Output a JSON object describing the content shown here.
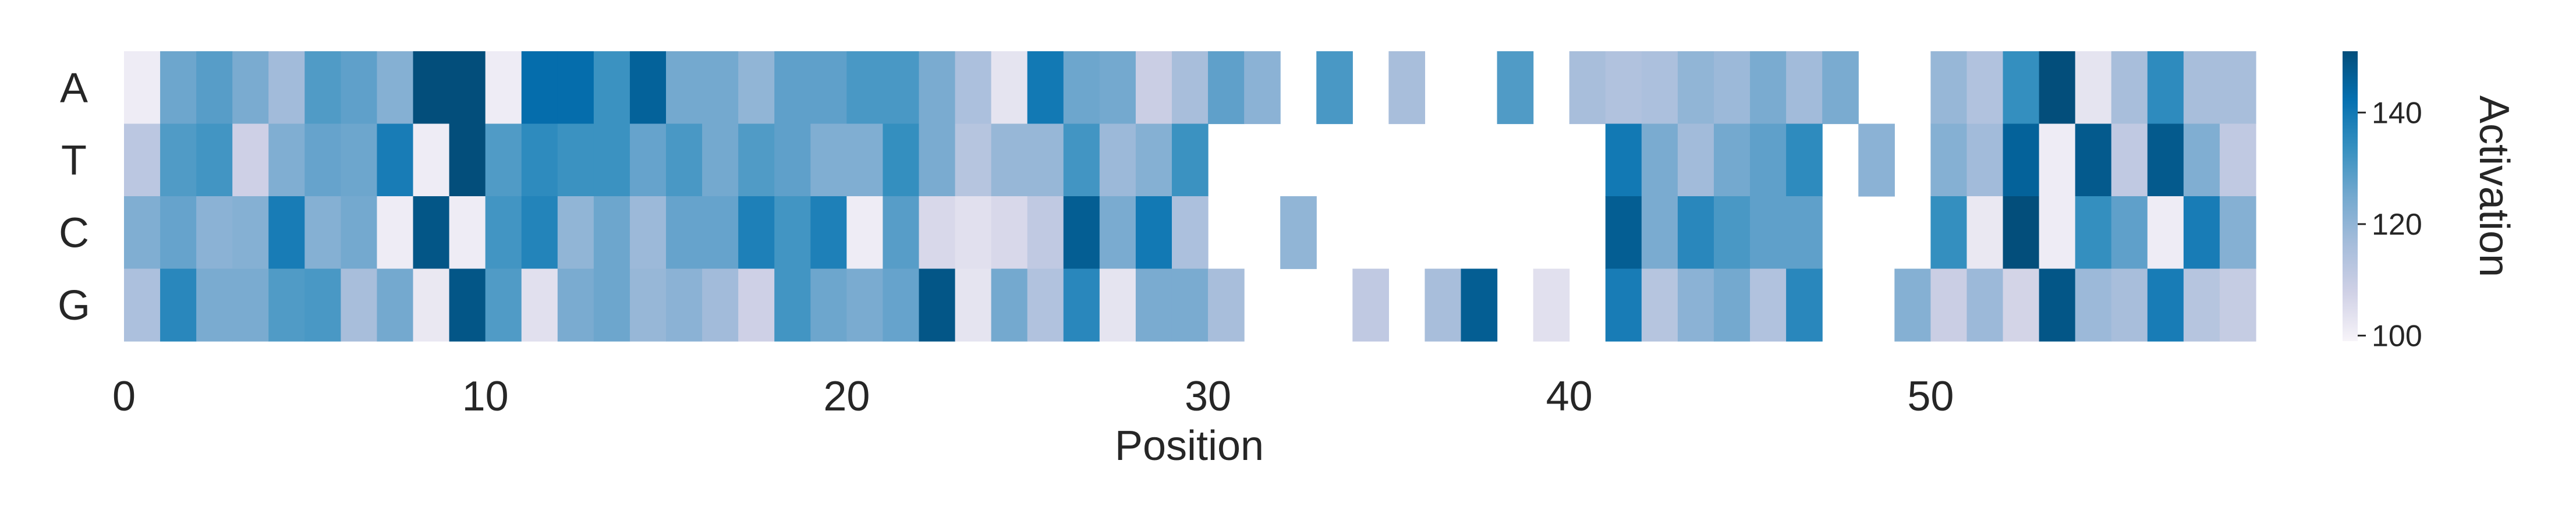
{
  "chart_data": {
    "type": "heatmap",
    "xlabel": "Position",
    "ylabel": "",
    "colorbar_label": "Activation",
    "colorbar_range": [
      99,
      151
    ],
    "colorbar_ticks": [
      100,
      120,
      140
    ],
    "x_ticks": [
      0,
      10,
      20,
      30,
      40,
      50
    ],
    "rows": [
      "A",
      "T",
      "C",
      "G"
    ],
    "n_positions": 59,
    "colormap": [
      "#f7f4f9",
      "#d0d1e6",
      "#a6bddb",
      "#74a9cf",
      "#3690c0",
      "#0570b0",
      "#034e7b"
    ],
    "values": [
      [
        101,
        126,
        129,
        124,
        117,
        130,
        128,
        122,
        151,
        151,
        101,
        143,
        143,
        133,
        146,
        125,
        125,
        120,
        128,
        128,
        131,
        131,
        124,
        115,
        103,
        140,
        126,
        125,
        109,
        116,
        128,
        121,
        null,
        131,
        null,
        116,
        null,
        null,
        130,
        null,
        116,
        114,
        115,
        120,
        118,
        124,
        117,
        124,
        null,
        null,
        119,
        114,
        134,
        151,
        103,
        116,
        135,
        116,
        116
      ],
      [
        112,
        130,
        132,
        108,
        123,
        127,
        126,
        139,
        101,
        151,
        130,
        135,
        133,
        133,
        127,
        131,
        125,
        130,
        128,
        123,
        123,
        134,
        124,
        113,
        119,
        119,
        132,
        118,
        122,
        133,
        null,
        null,
        null,
        null,
        null,
        null,
        null,
        null,
        null,
        null,
        null,
        140,
        124,
        117,
        125,
        128,
        135,
        null,
        121,
        null,
        122,
        117,
        146,
        101,
        148,
        111,
        148,
        123,
        111
      ],
      [
        123,
        127,
        121,
        122,
        139,
        122,
        125,
        101,
        149,
        101,
        132,
        137,
        120,
        126,
        118,
        127,
        127,
        138,
        132,
        138,
        101,
        129,
        106,
        104,
        106,
        111,
        147,
        124,
        140,
        115,
        null,
        null,
        120,
        null,
        null,
        null,
        null,
        null,
        null,
        null,
        null,
        147,
        124,
        136,
        131,
        128,
        128,
        null,
        null,
        null,
        134,
        102,
        151,
        101,
        134,
        128,
        101,
        139,
        122
      ],
      [
        115,
        136,
        124,
        124,
        130,
        131,
        116,
        125,
        102,
        149,
        130,
        104,
        124,
        126,
        119,
        121,
        117,
        108,
        132,
        126,
        124,
        127,
        149,
        103,
        125,
        114,
        136,
        103,
        124,
        124,
        116,
        null,
        null,
        null,
        111,
        null,
        116,
        147,
        null,
        104,
        null,
        139,
        113,
        121,
        125,
        114,
        136,
        null,
        null,
        122,
        109,
        118,
        107,
        149,
        118,
        116,
        139,
        113,
        110
      ]
    ]
  }
}
